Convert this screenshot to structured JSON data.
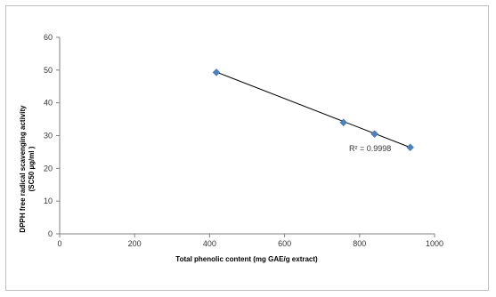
{
  "chart_data": {
    "type": "scatter",
    "xlabel": "Total  phenolic content (mg GAE/g extract)",
    "ylabel_line1": "DPPH free radical scavenging activity",
    "ylabel_line2": "(SC50 µg/ml )",
    "xlim": [
      0,
      1000
    ],
    "ylim": [
      0,
      60
    ],
    "xticks": [
      "0",
      "200",
      "400",
      "600",
      "800",
      "1000"
    ],
    "yticks": [
      "0",
      "10",
      "20",
      "30",
      "40",
      "50",
      "60"
    ],
    "points": [
      {
        "x": 418,
        "y": 49.3
      },
      {
        "x": 757,
        "y": 34.0
      },
      {
        "x": 840,
        "y": 30.5
      },
      {
        "x": 935,
        "y": 26.4
      }
    ],
    "trendline": {
      "type": "linear",
      "x": [
        418,
        935
      ],
      "y": [
        49.4,
        26.4
      ]
    },
    "annotation": "R² = 0.9998",
    "marker_color": "#4f81bd",
    "line_color": "#000000",
    "grid": false,
    "legend": "none"
  }
}
